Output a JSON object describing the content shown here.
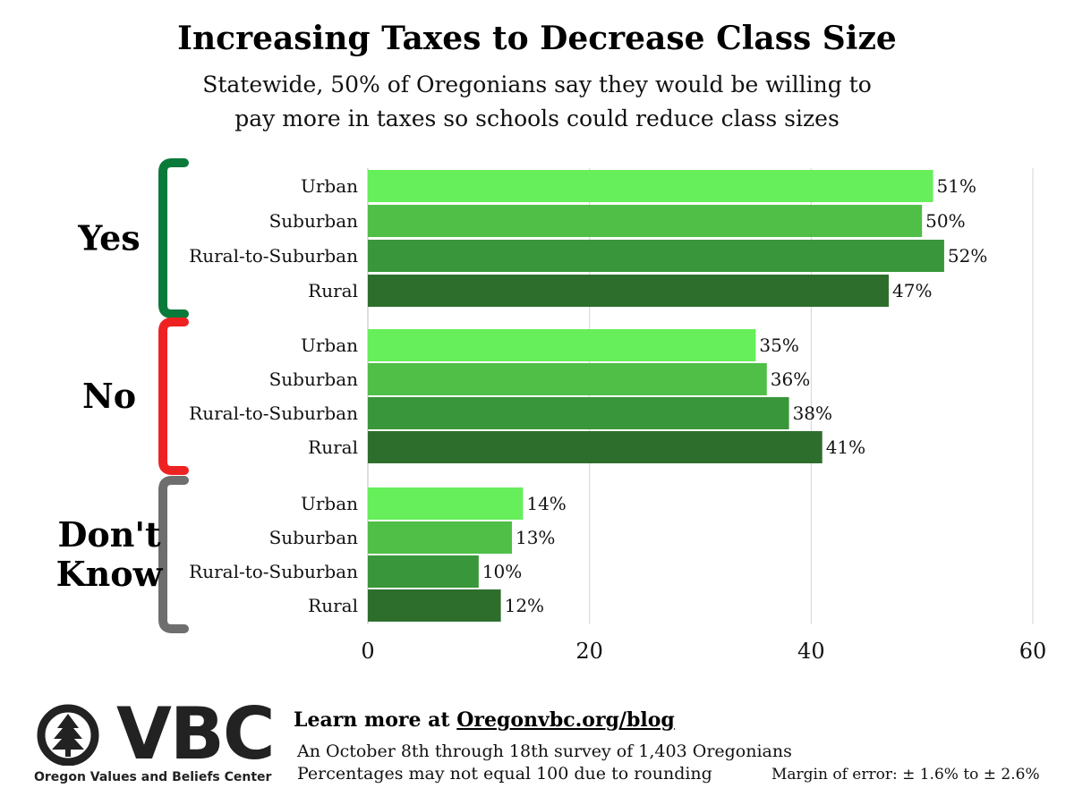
{
  "header": {
    "title": "Increasing Taxes to Decrease Class Size",
    "subtitle_line1": "Statewide, 50% of Oregonians say they would be willing to",
    "subtitle_line2": "pay more in taxes so schools could reduce class sizes"
  },
  "chart_data": {
    "type": "bar",
    "orientation": "horizontal",
    "title": "Increasing Taxes to Decrease Class Size",
    "xlim": [
      0,
      60
    ],
    "xticks": [
      0,
      20,
      40,
      60
    ],
    "grid": true,
    "value_suffix": "%",
    "category_labels": [
      "Urban",
      "Suburban",
      "Rural-to-Suburban",
      "Rural"
    ],
    "category_colors": [
      "#66ee5b",
      "#4fbf47",
      "#3a963a",
      "#2d6e2d"
    ],
    "groups": [
      {
        "label_lines": [
          "Yes"
        ],
        "bracket_color": "#0a7a3a",
        "values": [
          51,
          50,
          52,
          47
        ]
      },
      {
        "label_lines": [
          "No"
        ],
        "bracket_color": "#ee2222",
        "values": [
          35,
          36,
          38,
          41
        ]
      },
      {
        "label_lines": [
          "Don't",
          "Know"
        ],
        "bracket_color": "#6e6e6e",
        "values": [
          14,
          13,
          10,
          12
        ]
      }
    ]
  },
  "footer": {
    "learn_prefix": "Learn more at ",
    "learn_url": "Oregonvbc.org/blog",
    "note_survey": "An October 8th through 18th survey of 1,403 Oregonians",
    "note_rounding": "Percentages may not equal 100 due to rounding",
    "margin_of_error": "Margin of error: ± 1.6% to ± 2.6%"
  },
  "logo": {
    "letters": "VBC",
    "caption": "Oregon Values and Beliefs Center",
    "icon": "tree-circle-icon"
  }
}
